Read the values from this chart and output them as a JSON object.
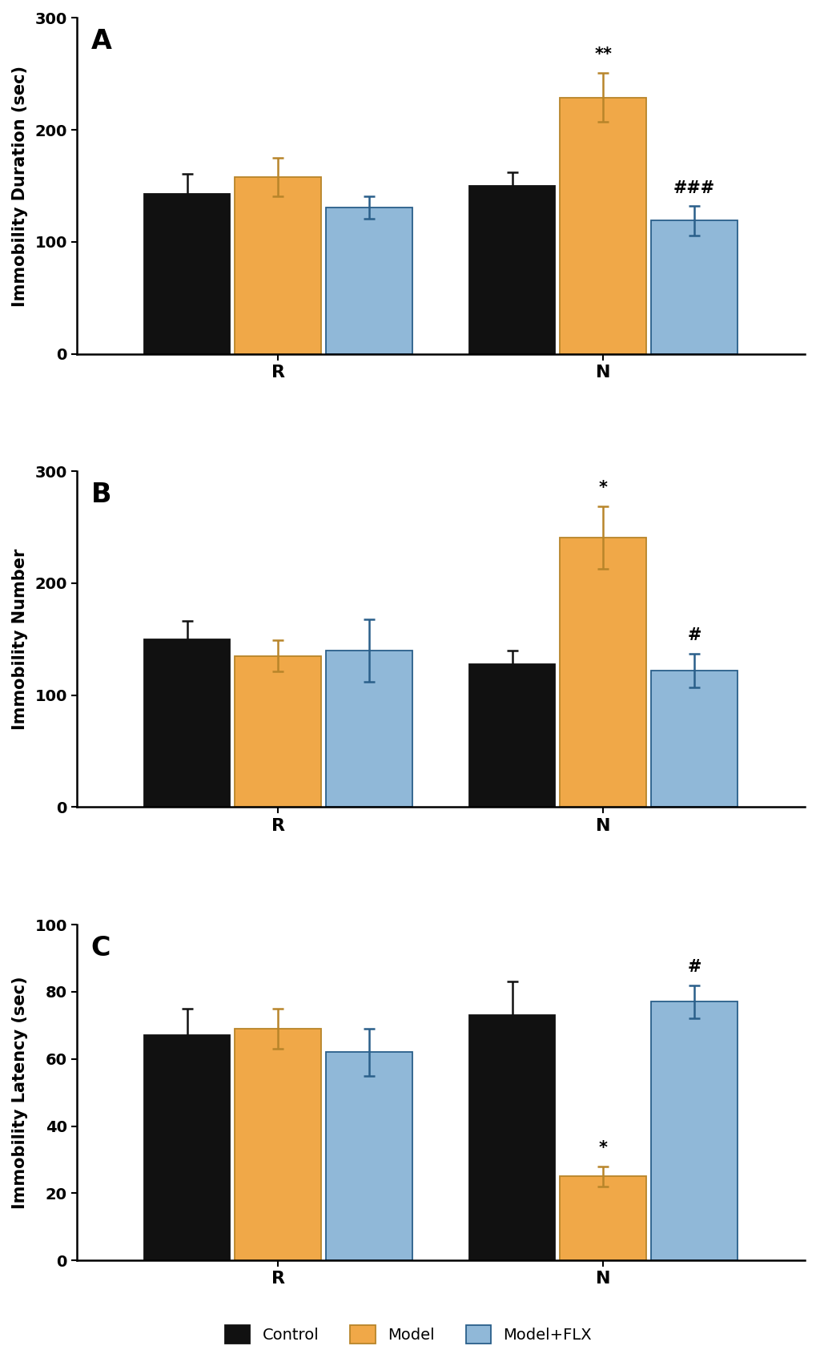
{
  "panel_A": {
    "title": "A",
    "ylabel": "Immobility Duration (sec)",
    "ylim": [
      0,
      300
    ],
    "yticks": [
      0,
      100,
      200,
      300
    ],
    "bars": {
      "Control": [
        143,
        150
      ],
      "Model": [
        158,
        229
      ],
      "Model+FLX": [
        131,
        119
      ]
    },
    "errors": {
      "Control": [
        18,
        12
      ],
      "Model": [
        17,
        22
      ],
      "Model+FLX": [
        10,
        13
      ]
    },
    "annotations": {
      "Model_N": "**",
      "ModelFLX_N": "###"
    }
  },
  "panel_B": {
    "title": "B",
    "ylabel": "Immobility Number",
    "ylim": [
      0,
      300
    ],
    "yticks": [
      0,
      100,
      200,
      300
    ],
    "bars": {
      "Control": [
        150,
        128
      ],
      "Model": [
        135,
        241
      ],
      "Model+FLX": [
        140,
        122
      ]
    },
    "errors": {
      "Control": [
        16,
        12
      ],
      "Model": [
        14,
        28
      ],
      "Model+FLX": [
        28,
        15
      ]
    },
    "annotations": {
      "Model_N": "*",
      "ModelFLX_N": "#"
    }
  },
  "panel_C": {
    "title": "C",
    "ylabel": "Immobility Latency (sec)",
    "ylim": [
      0,
      100
    ],
    "yticks": [
      0,
      20,
      40,
      60,
      80,
      100
    ],
    "bars": {
      "Control": [
        67,
        73
      ],
      "Model": [
        69,
        25
      ],
      "Model+FLX": [
        62,
        77
      ]
    },
    "errors": {
      "Control": [
        8,
        10
      ],
      "Model": [
        6,
        3
      ],
      "Model+FLX": [
        7,
        5
      ]
    },
    "annotations": {
      "Model_N": "*",
      "ModelFLX_N": "#"
    }
  },
  "colors": {
    "Control": "#111111",
    "Model": "#F0A848",
    "Model+FLX": "#90B8D8"
  },
  "edge_colors": {
    "Control": "#111111",
    "Model": "#B8852A",
    "Model+FLX": "#2A5F8A"
  },
  "legend_labels": [
    "Control",
    "Model",
    "Model+FLX"
  ],
  "bar_width": 0.28,
  "background_color": "#ffffff",
  "font_size_label": 15,
  "font_size_tick": 14,
  "font_size_annot": 15,
  "font_size_panel": 24
}
